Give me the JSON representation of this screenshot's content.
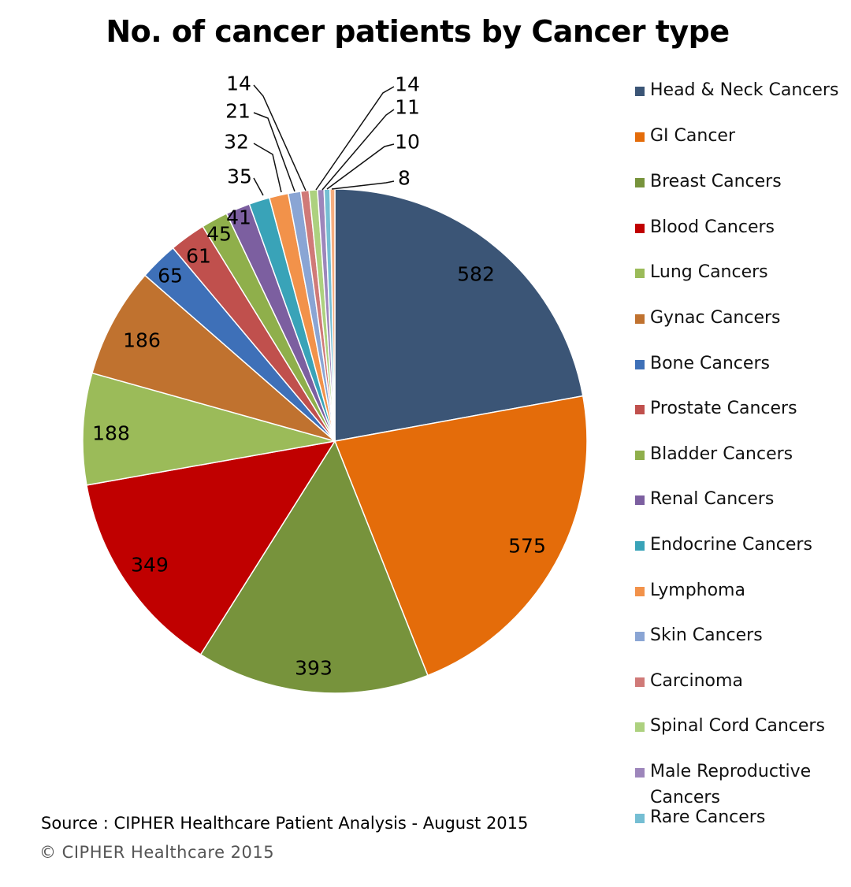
{
  "chart_data": {
    "type": "pie",
    "title": "No. of cancer patients by Cancer type",
    "slices": [
      {
        "name": "Head & Neck Cancers",
        "value": 582,
        "color": "#3b5576"
      },
      {
        "name": "GI Cancer",
        "value": 575,
        "color": "#e46c0a"
      },
      {
        "name": "Breast Cancers",
        "value": 393,
        "color": "#77933c"
      },
      {
        "name": "Blood Cancers",
        "value": 349,
        "color": "#c00000"
      },
      {
        "name": "Lung Cancers",
        "value": 188,
        "color": "#9bbb59"
      },
      {
        "name": "Gynac Cancers",
        "value": 186,
        "color": "#c0722f"
      },
      {
        "name": "Bone Cancers",
        "value": 65,
        "color": "#3e70b8"
      },
      {
        "name": "Prostate Cancers",
        "value": 61,
        "color": "#c0504d"
      },
      {
        "name": "Bladder Cancers",
        "value": 45,
        "color": "#8faf4b"
      },
      {
        "name": "Renal Cancers",
        "value": 41,
        "color": "#7c5fa0"
      },
      {
        "name": "Endocrine Cancers",
        "value": 35,
        "color": "#39a3b8"
      },
      {
        "name": "Lymphoma",
        "value": 32,
        "color": "#f2924a"
      },
      {
        "name": "Skin Cancers",
        "value": 21,
        "color": "#8aa5d4"
      },
      {
        "name": "Carcinoma",
        "value": 14,
        "color": "#d07a78"
      },
      {
        "name": "Spinal Cord Cancers",
        "value": 14,
        "color": "#add17f"
      },
      {
        "name": "Male Reproductive Cancers",
        "value": 11,
        "color": "#9d86bb"
      },
      {
        "name": "Rare Cancers",
        "value": 10,
        "color": "#75bed3"
      },
      {
        "name": "",
        "value": 8,
        "color": "#f6ad7e"
      }
    ],
    "legend_position": "right"
  },
  "source_note": "Source : CIPHER Healthcare Patient Analysis -  August 2015",
  "copyright": "© CIPHER Healthcare 2015"
}
